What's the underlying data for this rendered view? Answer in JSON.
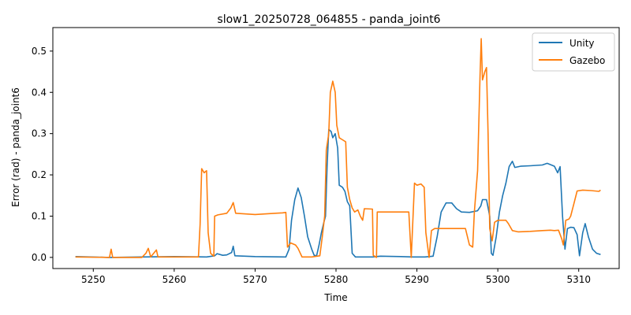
{
  "chart_data": {
    "type": "line",
    "title": "slow1_20250728_064855 - panda_joint6",
    "xlabel": "Time",
    "ylabel": "Error (rad) - panda_joint6",
    "xlim": [
      5245,
      5315
    ],
    "ylim": [
      -0.027,
      0.557
    ],
    "xticks": [
      5250,
      5260,
      5270,
      5280,
      5290,
      5300,
      5310
    ],
    "yticks": [
      0.0,
      0.1,
      0.2,
      0.3,
      0.4,
      0.5
    ],
    "xtick_labels": [
      "5250",
      "5260",
      "5270",
      "5280",
      "5290",
      "5300",
      "5310"
    ],
    "ytick_labels": [
      "0.0",
      "0.1",
      "0.2",
      "0.3",
      "0.4",
      "0.5"
    ],
    "grid": false,
    "legend_position": "top-right",
    "series": [
      {
        "name": "Unity",
        "color": "#1f77b4",
        "points": [
          [
            5247.8,
            0.002
          ],
          [
            5252.0,
            0.0
          ],
          [
            5256.0,
            0.001
          ],
          [
            5260.0,
            0.002
          ],
          [
            5264.0,
            0.001
          ],
          [
            5265.0,
            0.004
          ],
          [
            5265.3,
            0.009
          ],
          [
            5266.0,
            0.005
          ],
          [
            5266.5,
            0.006
          ],
          [
            5267.1,
            0.012
          ],
          [
            5267.3,
            0.027
          ],
          [
            5267.5,
            0.004
          ],
          [
            5270.0,
            0.002
          ],
          [
            5273.8,
            0.001
          ],
          [
            5274.2,
            0.02
          ],
          [
            5274.5,
            0.09
          ],
          [
            5274.9,
            0.14
          ],
          [
            5275.3,
            0.168
          ],
          [
            5275.7,
            0.145
          ],
          [
            5276.1,
            0.1
          ],
          [
            5276.5,
            0.05
          ],
          [
            5277.0,
            0.02
          ],
          [
            5277.3,
            0.005
          ],
          [
            5277.6,
            0.004
          ],
          [
            5277.9,
            0.03
          ],
          [
            5278.2,
            0.06
          ],
          [
            5278.5,
            0.085
          ],
          [
            5278.7,
            0.1
          ],
          [
            5278.9,
            0.22
          ],
          [
            5279.1,
            0.31
          ],
          [
            5279.4,
            0.305
          ],
          [
            5279.6,
            0.29
          ],
          [
            5279.9,
            0.3
          ],
          [
            5280.2,
            0.265
          ],
          [
            5280.4,
            0.175
          ],
          [
            5280.8,
            0.17
          ],
          [
            5281.1,
            0.16
          ],
          [
            5281.4,
            0.135
          ],
          [
            5281.7,
            0.125
          ],
          [
            5282.0,
            0.01
          ],
          [
            5282.4,
            0.001
          ],
          [
            5284.5,
            0.001
          ],
          [
            5285.5,
            0.003
          ],
          [
            5288.0,
            0.002
          ],
          [
            5289.5,
            0.001
          ],
          [
            5291.0,
            0.001
          ],
          [
            5292.0,
            0.003
          ],
          [
            5292.5,
            0.05
          ],
          [
            5293.0,
            0.11
          ],
          [
            5293.6,
            0.132
          ],
          [
            5294.3,
            0.132
          ],
          [
            5294.9,
            0.118
          ],
          [
            5295.5,
            0.11
          ],
          [
            5296.5,
            0.109
          ],
          [
            5297.5,
            0.113
          ],
          [
            5297.9,
            0.125
          ],
          [
            5298.1,
            0.14
          ],
          [
            5298.6,
            0.14
          ],
          [
            5299.0,
            0.1
          ],
          [
            5299.2,
            0.01
          ],
          [
            5299.4,
            0.005
          ],
          [
            5299.8,
            0.05
          ],
          [
            5300.2,
            0.11
          ],
          [
            5300.6,
            0.15
          ],
          [
            5301.0,
            0.18
          ],
          [
            5301.4,
            0.22
          ],
          [
            5301.8,
            0.233
          ],
          [
            5302.1,
            0.218
          ],
          [
            5302.8,
            0.221
          ],
          [
            5304.0,
            0.222
          ],
          [
            5305.5,
            0.224
          ],
          [
            5306.1,
            0.228
          ],
          [
            5306.5,
            0.225
          ],
          [
            5307.0,
            0.221
          ],
          [
            5307.4,
            0.205
          ],
          [
            5307.7,
            0.22
          ],
          [
            5308.0,
            0.1
          ],
          [
            5308.3,
            0.02
          ],
          [
            5308.6,
            0.07
          ],
          [
            5309.0,
            0.073
          ],
          [
            5309.4,
            0.072
          ],
          [
            5309.8,
            0.055
          ],
          [
            5310.1,
            0.004
          ],
          [
            5310.5,
            0.06
          ],
          [
            5310.8,
            0.082
          ],
          [
            5311.2,
            0.05
          ],
          [
            5311.7,
            0.02
          ],
          [
            5312.2,
            0.01
          ],
          [
            5312.7,
            0.007
          ]
        ]
      },
      {
        "name": "Gazebo",
        "color": "#ff7f0e",
        "points": [
          [
            5247.8,
            0.001
          ],
          [
            5252.0,
            0.0
          ],
          [
            5252.2,
            0.02
          ],
          [
            5252.4,
            0.0
          ],
          [
            5256.0,
            0.0
          ],
          [
            5256.5,
            0.01
          ],
          [
            5256.8,
            0.022
          ],
          [
            5257.1,
            0.001
          ],
          [
            5257.8,
            0.018
          ],
          [
            5258.0,
            0.001
          ],
          [
            5263.0,
            0.001
          ],
          [
            5263.2,
            0.08
          ],
          [
            5263.4,
            0.215
          ],
          [
            5263.7,
            0.205
          ],
          [
            5264.0,
            0.21
          ],
          [
            5264.2,
            0.06
          ],
          [
            5264.5,
            0.01
          ],
          [
            5264.9,
            0.003
          ],
          [
            5265.0,
            0.1
          ],
          [
            5265.4,
            0.103
          ],
          [
            5266.5,
            0.107
          ],
          [
            5267.0,
            0.12
          ],
          [
            5267.3,
            0.133
          ],
          [
            5267.6,
            0.107
          ],
          [
            5270.0,
            0.104
          ],
          [
            5272.5,
            0.107
          ],
          [
            5273.4,
            0.108
          ],
          [
            5273.8,
            0.109
          ],
          [
            5274.0,
            0.025
          ],
          [
            5274.4,
            0.035
          ],
          [
            5275.0,
            0.03
          ],
          [
            5275.3,
            0.022
          ],
          [
            5275.8,
            0.001
          ],
          [
            5277.0,
            0.001
          ],
          [
            5278.0,
            0.004
          ],
          [
            5278.3,
            0.05
          ],
          [
            5278.6,
            0.1
          ],
          [
            5278.8,
            0.26
          ],
          [
            5279.1,
            0.3
          ],
          [
            5279.3,
            0.4
          ],
          [
            5279.6,
            0.427
          ],
          [
            5279.9,
            0.4
          ],
          [
            5280.1,
            0.32
          ],
          [
            5280.4,
            0.29
          ],
          [
            5280.8,
            0.285
          ],
          [
            5281.2,
            0.28
          ],
          [
            5281.4,
            0.17
          ],
          [
            5281.7,
            0.14
          ],
          [
            5282.0,
            0.12
          ],
          [
            5282.3,
            0.11
          ],
          [
            5282.7,
            0.115
          ],
          [
            5283.0,
            0.1
          ],
          [
            5283.3,
            0.09
          ],
          [
            5283.5,
            0.118
          ],
          [
            5284.5,
            0.117
          ],
          [
            5284.6,
            0.005
          ],
          [
            5285.0,
            0.0
          ],
          [
            5285.1,
            0.11
          ],
          [
            5287.0,
            0.11
          ],
          [
            5289.0,
            0.11
          ],
          [
            5289.3,
            0.0
          ],
          [
            5289.7,
            0.18
          ],
          [
            5290.0,
            0.175
          ],
          [
            5290.5,
            0.178
          ],
          [
            5290.9,
            0.17
          ],
          [
            5291.1,
            0.06
          ],
          [
            5291.5,
            0.0
          ],
          [
            5291.8,
            0.065
          ],
          [
            5292.2,
            0.07
          ],
          [
            5295.0,
            0.07
          ],
          [
            5296.0,
            0.07
          ],
          [
            5296.5,
            0.03
          ],
          [
            5296.9,
            0.025
          ],
          [
            5297.1,
            0.11
          ],
          [
            5297.5,
            0.21
          ],
          [
            5297.8,
            0.44
          ],
          [
            5297.95,
            0.53
          ],
          [
            5298.1,
            0.43
          ],
          [
            5298.4,
            0.45
          ],
          [
            5298.6,
            0.46
          ],
          [
            5298.8,
            0.3
          ],
          [
            5299.0,
            0.07
          ],
          [
            5299.3,
            0.04
          ],
          [
            5299.6,
            0.085
          ],
          [
            5300.0,
            0.09
          ],
          [
            5301.0,
            0.09
          ],
          [
            5301.3,
            0.082
          ],
          [
            5301.8,
            0.065
          ],
          [
            5302.5,
            0.062
          ],
          [
            5304.0,
            0.063
          ],
          [
            5305.5,
            0.065
          ],
          [
            5306.5,
            0.066
          ],
          [
            5307.0,
            0.065
          ],
          [
            5307.5,
            0.066
          ],
          [
            5307.9,
            0.045
          ],
          [
            5308.1,
            0.03
          ],
          [
            5308.4,
            0.09
          ],
          [
            5308.8,
            0.093
          ],
          [
            5309.0,
            0.1
          ],
          [
            5309.4,
            0.13
          ],
          [
            5309.8,
            0.161
          ],
          [
            5310.5,
            0.163
          ],
          [
            5311.5,
            0.162
          ],
          [
            5312.5,
            0.16
          ],
          [
            5312.7,
            0.163
          ]
        ]
      }
    ]
  }
}
